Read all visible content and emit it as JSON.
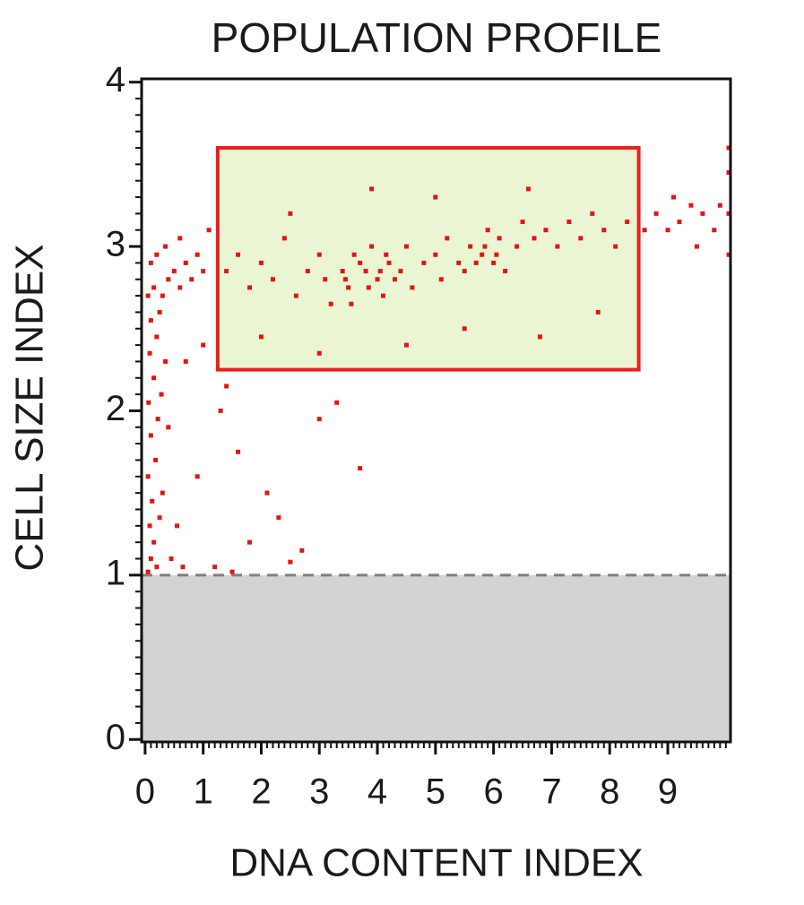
{
  "chart_data": {
    "type": "scatter",
    "title": "POPULATION PROFILE",
    "x_label": "DNA CONTENT INDEX",
    "y_label": "CELL SIZE INDEX",
    "xlim": [
      -0.06,
      10.08
    ],
    "ylim": [
      -0.015,
      4.02
    ],
    "xticks": [
      0,
      1,
      2,
      3,
      4,
      5,
      6,
      7,
      8,
      9
    ],
    "yticks": [
      0,
      1,
      2,
      3,
      4
    ],
    "minor_ticks": 10,
    "color": "#e8140c",
    "threshold": 1,
    "threshold_color": "#d3d3d3",
    "gate": {
      "x": [
        1.25,
        8.5
      ],
      "y": [
        2.25,
        3.6
      ],
      "color": "#e82020",
      "fill": "#e9f5d3"
    },
    "x": [
      0.05,
      0.1,
      0.15,
      0.08,
      0.2,
      0.12,
      0.25,
      0.05,
      0.18,
      0.3,
      0.1,
      0.22,
      0.06,
      0.15,
      0.28,
      0.08,
      0.2,
      0.35,
      0.1,
      0.25,
      0.05,
      0.15,
      0.3,
      0.4,
      0.1,
      0.2,
      0.5,
      0.6,
      0.7,
      0.8,
      0.9,
      1.0,
      0.45,
      0.55,
      0.65,
      0.4,
      0.7,
      1.1,
      0.35,
      0.6,
      1.3,
      1.6,
      2.1,
      2.3,
      1.8,
      2.7,
      1.2,
      1.5,
      2.5,
      3.0,
      3.3,
      3.7,
      1.4,
      0.9,
      1.0,
      1.4,
      1.6,
      1.8,
      2.0,
      2.2,
      2.4,
      2.6,
      2.8,
      3.0,
      3.1,
      3.2,
      3.4,
      3.5,
      3.6,
      3.8,
      3.9,
      4.0,
      4.1,
      4.2,
      4.4,
      4.5,
      4.6,
      4.8,
      5.0,
      5.1,
      5.2,
      5.4,
      5.5,
      5.6,
      5.8,
      5.9,
      6.0,
      6.1,
      6.2,
      6.4,
      6.5,
      6.7,
      6.9,
      7.1,
      7.3,
      7.5,
      7.7,
      7.9,
      8.1,
      8.3,
      2.0,
      3.0,
      4.5,
      5.5,
      6.8,
      3.9,
      5.0,
      6.6,
      2.5,
      7.8,
      3.45,
      3.7,
      3.85,
      4.05,
      4.3,
      3.55,
      4.15,
      5.7,
      6.05,
      5.85,
      8.6,
      8.8,
      9.0,
      9.2,
      9.4,
      9.6,
      9.8,
      9.1,
      9.5,
      9.9,
      10.05,
      10.05,
      10.05,
      10.05
    ],
    "y": [
      1.02,
      1.1,
      1.2,
      1.3,
      1.05,
      1.45,
      1.35,
      1.6,
      1.7,
      1.5,
      1.85,
      1.95,
      2.05,
      2.2,
      2.1,
      2.35,
      2.45,
      2.3,
      2.55,
      2.6,
      2.7,
      2.75,
      2.7,
      2.8,
      2.9,
      2.95,
      2.85,
      2.75,
      2.9,
      2.8,
      2.95,
      2.85,
      1.1,
      1.3,
      1.05,
      1.9,
      2.3,
      3.1,
      3.0,
      3.05,
      2.0,
      1.75,
      1.5,
      1.35,
      1.2,
      1.15,
      1.05,
      1.02,
      1.08,
      1.95,
      2.05,
      1.65,
      2.15,
      1.6,
      2.4,
      2.85,
      2.95,
      2.75,
      2.9,
      2.8,
      3.05,
      2.7,
      2.85,
      2.95,
      2.8,
      2.65,
      2.85,
      2.75,
      2.95,
      2.85,
      3.0,
      2.8,
      2.7,
      2.9,
      2.85,
      3.0,
      2.75,
      2.9,
      2.95,
      2.8,
      3.05,
      2.9,
      2.85,
      3.0,
      2.95,
      3.1,
      2.9,
      3.05,
      2.85,
      3.0,
      3.15,
      3.05,
      3.1,
      3.0,
      3.15,
      3.05,
      3.2,
      3.1,
      3.0,
      3.15,
      2.45,
      2.35,
      2.4,
      2.5,
      2.45,
      3.35,
      3.3,
      3.35,
      3.2,
      2.6,
      2.8,
      2.9,
      2.75,
      2.85,
      2.8,
      2.65,
      2.95,
      2.9,
      2.95,
      3.0,
      3.1,
      3.2,
      3.1,
      3.15,
      3.25,
      3.2,
      3.1,
      3.3,
      3.0,
      3.25,
      2.95,
      3.2,
      3.45,
      3.6
    ]
  }
}
